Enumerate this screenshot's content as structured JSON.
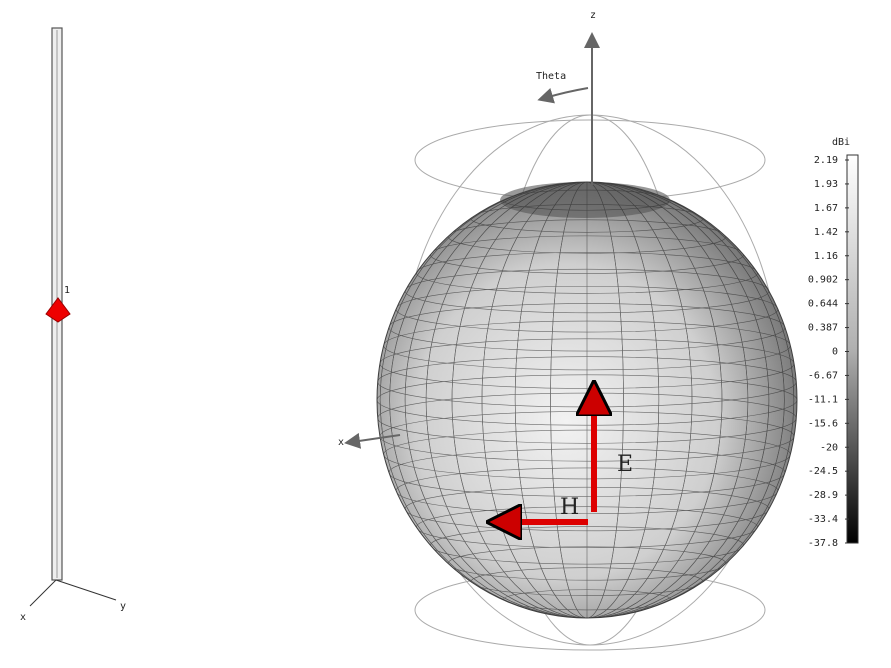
{
  "axes": {
    "z": "z",
    "x": "x",
    "theta": "Theta"
  },
  "dipole": {
    "port": "1",
    "x": "x",
    "y": "y"
  },
  "field_labels": {
    "e": "E",
    "h": "H"
  },
  "colorbar": {
    "unit": "dBi",
    "labels": [
      "2.19",
      "1.93",
      "1.67",
      "1.42",
      "1.16",
      "0.902",
      "0.644",
      "0.387",
      "0",
      "-6.67",
      "-11.1",
      "-15.6",
      "-20",
      "-24.5",
      "-28.9",
      "-33.4",
      "-37.8"
    ]
  }
}
